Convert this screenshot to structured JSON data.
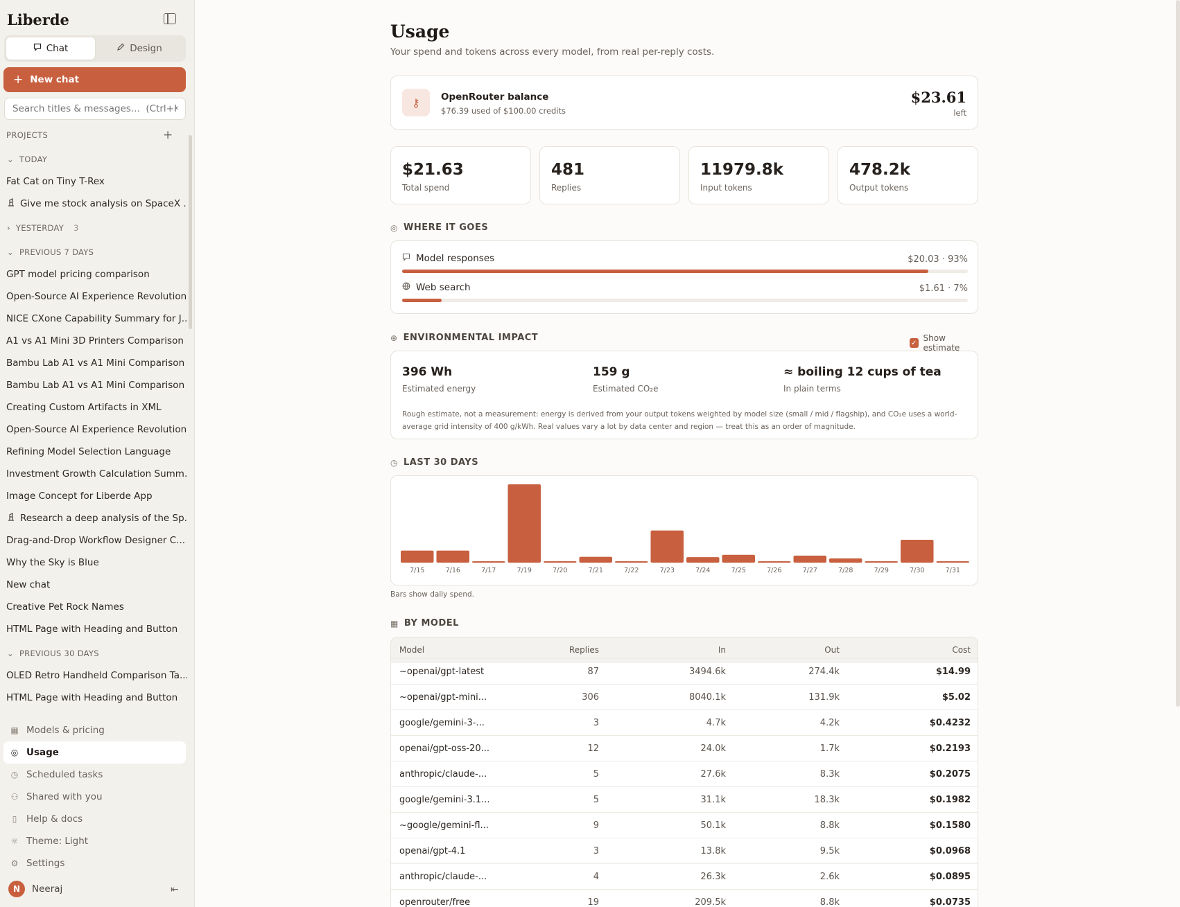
{
  "sidebar": {
    "brand": "Liberde",
    "tabs": [
      {
        "label": "Chat",
        "active": true
      },
      {
        "label": "Design",
        "active": false
      }
    ],
    "new_chat": "New chat",
    "search_placeholder": "Search titles & messages...  (Ctrl+K)",
    "projects_label": "PROJECTS",
    "groups": [
      {
        "label": "TODAY",
        "expanded": true,
        "count": "",
        "items": [
          {
            "title": "Fat Cat on Tiny T-Rex",
            "icon": ""
          },
          {
            "title": "Give me stock analysis on SpaceX ...",
            "icon": "research"
          }
        ]
      },
      {
        "label": "YESTERDAY",
        "expanded": false,
        "count": "3",
        "items": []
      },
      {
        "label": "PREVIOUS 7 DAYS",
        "expanded": true,
        "count": "",
        "items": [
          {
            "title": "GPT model pricing comparison",
            "icon": ""
          },
          {
            "title": "Open-Source AI Experience Revolution",
            "icon": ""
          },
          {
            "title": "NICE CXone Capability Summary for J...",
            "icon": ""
          },
          {
            "title": "A1 vs A1 Mini 3D Printers Comparison",
            "icon": ""
          },
          {
            "title": "Bambu Lab A1 vs A1 Mini Comparison",
            "icon": ""
          },
          {
            "title": "Bambu Lab A1 vs A1 Mini Comparison",
            "icon": ""
          },
          {
            "title": "Creating Custom Artifacts in XML",
            "icon": ""
          },
          {
            "title": "Open-Source AI Experience Revolution",
            "icon": ""
          },
          {
            "title": "Refining Model Selection Language",
            "icon": ""
          },
          {
            "title": "Investment Growth Calculation Summ...",
            "icon": ""
          },
          {
            "title": "Image Concept for Liberde App",
            "icon": ""
          },
          {
            "title": "Research a deep analysis of the Sp...",
            "icon": "research"
          },
          {
            "title": "Drag-and-Drop Workflow Designer C...",
            "icon": ""
          },
          {
            "title": "Why the Sky is Blue",
            "icon": ""
          },
          {
            "title": "New chat",
            "icon": ""
          },
          {
            "title": "Creative Pet Rock Names",
            "icon": ""
          },
          {
            "title": "HTML Page with Heading and Button",
            "icon": ""
          }
        ]
      },
      {
        "label": "PREVIOUS 30 DAYS",
        "expanded": true,
        "count": "",
        "items": [
          {
            "title": "OLED Retro Handheld Comparison Ta...",
            "icon": ""
          },
          {
            "title": "HTML Page with Heading and Button",
            "icon": ""
          }
        ]
      }
    ],
    "nav": [
      {
        "label": "Models & pricing",
        "icon": "grid-icon",
        "active": false
      },
      {
        "label": "Usage",
        "icon": "gauge-icon",
        "active": true
      },
      {
        "label": "Scheduled tasks",
        "icon": "clock-icon",
        "active": false
      },
      {
        "label": "Shared with you",
        "icon": "users-icon",
        "active": false
      },
      {
        "label": "Help & docs",
        "icon": "book-icon",
        "active": false
      },
      {
        "label": "Theme: Light",
        "icon": "sun-icon",
        "active": false
      },
      {
        "label": "Settings",
        "icon": "gear-icon",
        "active": false
      }
    ],
    "user": {
      "initial": "N",
      "name": "Neeraj"
    }
  },
  "page": {
    "title": "Usage",
    "subtitle": "Your spend and tokens across every model, from real per-reply costs."
  },
  "balance": {
    "name": "OpenRouter balance",
    "detail": "$76.39 used of $100.00 credits",
    "amount": "$23.61",
    "suffix": "left"
  },
  "stats": [
    {
      "value": "$21.63",
      "label": "Total spend"
    },
    {
      "value": "481",
      "label": "Replies"
    },
    {
      "value": "11979.8k",
      "label": "Input tokens"
    },
    {
      "value": "478.2k",
      "label": "Output tokens"
    }
  ],
  "where": {
    "title": "WHERE IT GOES",
    "rows": [
      {
        "label": "Model responses",
        "value": "$20.03 · 93%",
        "share": 0.93,
        "icon": "chat-icon"
      },
      {
        "label": "Web search",
        "value": "$1.61 · 7%",
        "share": 0.07,
        "icon": "globe-icon"
      }
    ]
  },
  "environment": {
    "title": "ENVIRONMENTAL IMPACT",
    "toggle_label": "Show estimate",
    "toggle_checked": true,
    "metrics": [
      {
        "value": "396 Wh",
        "label": "Estimated energy"
      },
      {
        "value": "159 g",
        "label": "Estimated CO₂e"
      },
      {
        "value": "≈ boiling 12 cups of tea",
        "label": "In plain terms"
      }
    ],
    "note": "Rough estimate, not a measurement: energy is derived from your output tokens weighted by model size (small / mid / flagship), and CO₂e uses a world-average grid intensity of 400 g/kWh. Real values vary a lot by data center and region — treat this as an order of magnitude."
  },
  "last30": {
    "title": "LAST 30 DAYS",
    "note": "Bars show daily spend."
  },
  "chart_data": {
    "type": "bar",
    "categories": [
      "7/15",
      "7/16",
      "7/17",
      "7/19",
      "7/20",
      "7/21",
      "7/22",
      "7/23",
      "7/24",
      "7/25",
      "7/26",
      "7/27",
      "7/28",
      "7/29",
      "7/30",
      "7/31"
    ],
    "values": [
      1.55,
      1.55,
      0.15,
      10.1,
      0.15,
      0.75,
      0.15,
      4.15,
      0.7,
      1.0,
      0.15,
      0.9,
      0.55,
      0.15,
      2.95,
      0.15
    ],
    "bar_color": "#c8603f",
    "xlabel": "",
    "ylabel": "",
    "ylim": [
      0,
      10.1
    ],
    "grid": false
  },
  "by_model": {
    "title": "BY MODEL",
    "columns": [
      "Model",
      "Replies",
      "In",
      "Out",
      "Cost"
    ],
    "rows": [
      [
        "~openai/gpt-latest",
        "87",
        "3494.6k",
        "274.4k",
        "$14.99"
      ],
      [
        "~openai/gpt-mini...",
        "306",
        "8040.1k",
        "131.9k",
        "$5.02"
      ],
      [
        "google/gemini-3-...",
        "3",
        "4.7k",
        "4.2k",
        "$0.4232"
      ],
      [
        "openai/gpt-oss-20...",
        "12",
        "24.0k",
        "1.7k",
        "$0.2193"
      ],
      [
        "anthropic/claude-...",
        "5",
        "27.6k",
        "8.3k",
        "$0.2075"
      ],
      [
        "google/gemini-3.1...",
        "5",
        "31.1k",
        "18.3k",
        "$0.1982"
      ],
      [
        "~google/gemini-fl...",
        "9",
        "50.1k",
        "8.8k",
        "$0.1580"
      ],
      [
        "openai/gpt-4.1",
        "3",
        "13.8k",
        "9.5k",
        "$0.0968"
      ],
      [
        "anthropic/claude-...",
        "4",
        "26.3k",
        "2.6k",
        "$0.0895"
      ],
      [
        "openrouter/free",
        "19",
        "209.5k",
        "8.8k",
        "$0.0735"
      ]
    ]
  },
  "colors": {
    "accent": "#c8603f",
    "sidebar_bg": "#f3f1ec",
    "page_bg": "#fcfbf9"
  }
}
